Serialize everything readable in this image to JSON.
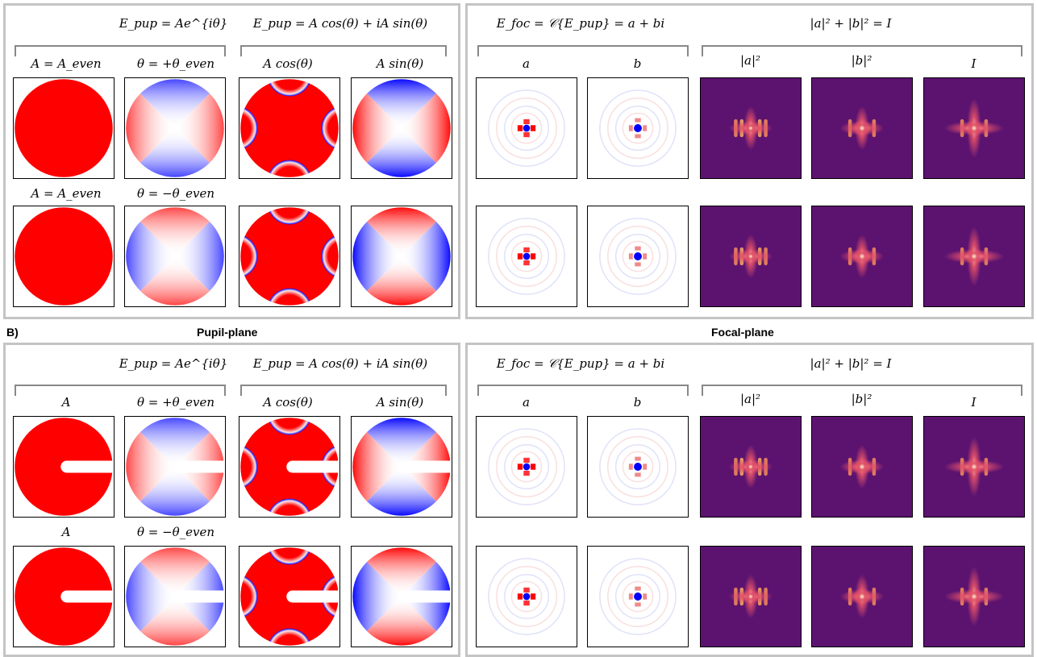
{
  "headers": {
    "b_label": "B)",
    "pupil_plane": "Pupil-plane",
    "focal_plane": "Focal-plane"
  },
  "equations": {
    "pupil_exp": "E_pup = Ae^{iθ}",
    "pupil_sum": "E_pup = A cos(θ) + iA sin(θ)",
    "focal_fourier": "E_foc = 𝒞{E_pup} = a + bi",
    "focal_intensity": "|a|² + |b|² = I"
  },
  "labels": {
    "a_top_amp": "A = A_even",
    "a_top_theta": "θ = +θ_even",
    "a_bot_amp": "A = A_even",
    "a_bot_theta": "θ = −θ_even",
    "b_top_amp": "A",
    "b_top_theta": "θ = +θ_even",
    "b_bot_amp": "A",
    "b_bot_theta": "θ = −θ_even",
    "cos": "A cos(θ)",
    "sin": "A sin(θ)",
    "a": "a",
    "b": "b",
    "a2": "|a|²",
    "b2": "|b|²",
    "I": "I"
  },
  "colors": {
    "positive": "#ff0000",
    "negative": "#0000ff",
    "neutral": "#ffffff",
    "intensity_bg": "#5c1370",
    "intensity_mid": "#e0506a",
    "intensity_peak": "#fff2c8",
    "frame": "#c4c4c4"
  }
}
